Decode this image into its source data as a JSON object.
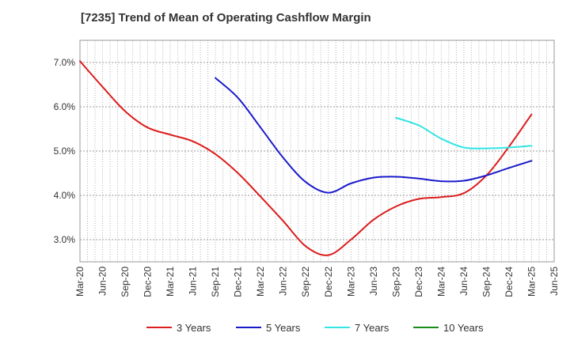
{
  "chart_data": {
    "type": "line",
    "title": "[7235]  Trend of Mean of Operating Cashflow Margin",
    "xlabel": "",
    "ylabel": "",
    "x_range": [
      "Mar-20",
      "Jun-25"
    ],
    "ylim": [
      2.5,
      7.5
    ],
    "y_ticks": [
      {
        "value": 3.0,
        "label": "3.0%"
      },
      {
        "value": 4.0,
        "label": "4.0%"
      },
      {
        "value": 5.0,
        "label": "5.0%"
      },
      {
        "value": 6.0,
        "label": "6.0%"
      },
      {
        "value": 7.0,
        "label": "7.0%"
      }
    ],
    "x_ticks": [
      "Mar-20",
      "Jun-20",
      "Sep-20",
      "Dec-20",
      "Mar-21",
      "Jun-21",
      "Sep-21",
      "Dec-21",
      "Mar-22",
      "Jun-22",
      "Sep-22",
      "Dec-22",
      "Mar-23",
      "Jun-23",
      "Sep-23",
      "Dec-23",
      "Mar-24",
      "Jun-24",
      "Sep-24",
      "Dec-24",
      "Mar-25",
      "Jun-25"
    ],
    "grid": true,
    "legend_position": "bottom",
    "series": [
      {
        "name": "3 Years",
        "color": "#dd1c1c",
        "points": [
          [
            "Mar-20",
            7.03
          ],
          [
            "Jun-20",
            6.45
          ],
          [
            "Sep-20",
            5.9
          ],
          [
            "Dec-20",
            5.53
          ],
          [
            "Mar-21",
            5.37
          ],
          [
            "Jun-21",
            5.22
          ],
          [
            "Sep-21",
            4.93
          ],
          [
            "Dec-21",
            4.5
          ],
          [
            "Mar-22",
            3.97
          ],
          [
            "Jun-22",
            3.42
          ],
          [
            "Sep-22",
            2.85
          ],
          [
            "Dec-22",
            2.65
          ],
          [
            "Mar-23",
            3.0
          ],
          [
            "Jun-23",
            3.45
          ],
          [
            "Sep-23",
            3.75
          ],
          [
            "Dec-23",
            3.92
          ],
          [
            "Mar-24",
            3.96
          ],
          [
            "Jun-24",
            4.05
          ],
          [
            "Sep-24",
            4.45
          ],
          [
            "Dec-24",
            5.1
          ],
          [
            "Mar-25",
            5.83
          ]
        ]
      },
      {
        "name": "5 Years",
        "color": "#1a1acc",
        "points": [
          [
            "Sep-21",
            6.65
          ],
          [
            "Dec-21",
            6.2
          ],
          [
            "Mar-22",
            5.53
          ],
          [
            "Jun-22",
            4.85
          ],
          [
            "Sep-22",
            4.3
          ],
          [
            "Dec-22",
            4.06
          ],
          [
            "Mar-23",
            4.27
          ],
          [
            "Jun-23",
            4.4
          ],
          [
            "Sep-23",
            4.42
          ],
          [
            "Dec-23",
            4.38
          ],
          [
            "Mar-24",
            4.32
          ],
          [
            "Jun-24",
            4.33
          ],
          [
            "Sep-24",
            4.45
          ],
          [
            "Dec-24",
            4.62
          ],
          [
            "Mar-25",
            4.78
          ]
        ]
      },
      {
        "name": "7 Years",
        "color": "#33e5e5",
        "points": [
          [
            "Sep-23",
            5.75
          ],
          [
            "Dec-23",
            5.58
          ],
          [
            "Mar-24",
            5.28
          ],
          [
            "Jun-24",
            5.08
          ],
          [
            "Sep-24",
            5.06
          ],
          [
            "Dec-24",
            5.08
          ],
          [
            "Mar-25",
            5.12
          ]
        ]
      },
      {
        "name": "10 Years",
        "color": "#1a8c1a",
        "points": []
      }
    ]
  }
}
